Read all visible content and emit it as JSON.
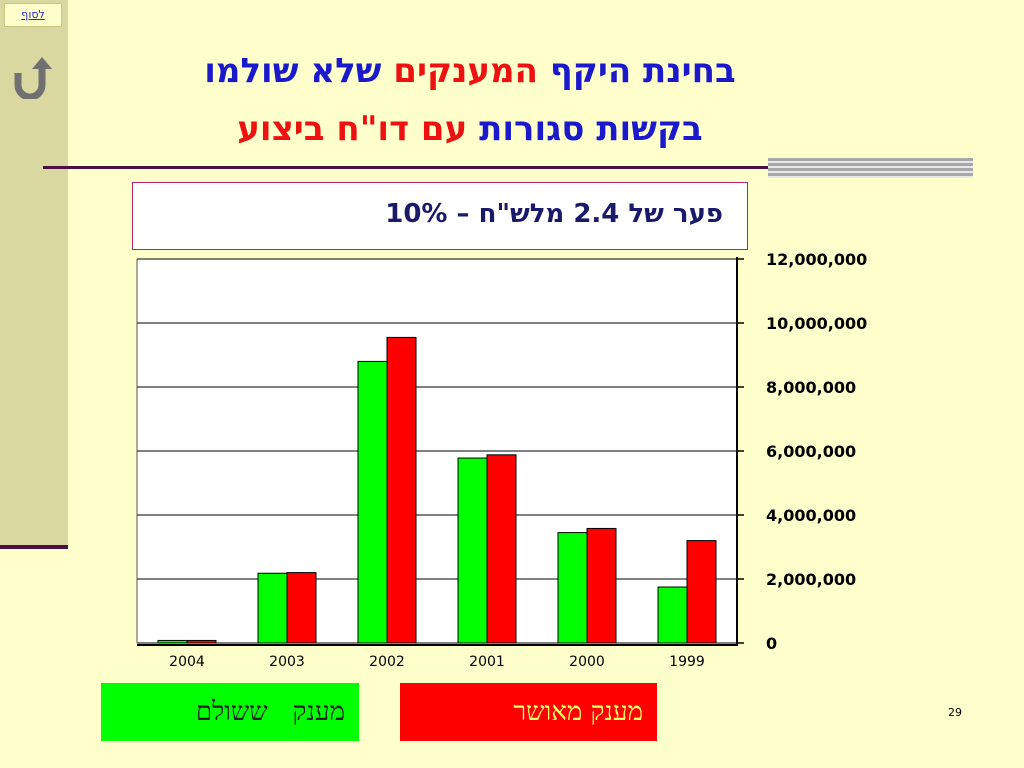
{
  "nav": {
    "to_end_label": "לסוף"
  },
  "title": {
    "line1_part1": "בחינת היקף ",
    "line1_part2": "המענקים",
    "line1_part3": " שלא שולמו",
    "line2_part1": "בקשות סגורות",
    "line2_part2": " עם  ",
    "line2_part3": "דו\"ח ביצוע"
  },
  "gap_note": "פער של 2.4  מלש\"ח – 10%",
  "legend": {
    "paid": "מענק   ששולם",
    "approved": "מענק מאושר"
  },
  "colors": {
    "paid": "#00ff00",
    "approved": "#ff0000"
  },
  "page_number": "29",
  "chart_data": {
    "type": "bar",
    "categories": [
      "2004",
      "2003",
      "2002",
      "2001",
      "2000",
      "1999"
    ],
    "series": [
      {
        "name": "מענק   ששולם",
        "values": [
          80000,
          2180000,
          8800000,
          5780000,
          3450000,
          1750000
        ]
      },
      {
        "name": "מענק מאושר",
        "values": [
          80000,
          2200000,
          9550000,
          5880000,
          3580000,
          3200000
        ]
      }
    ],
    "yticks": [
      "0",
      "2,000,000",
      "4,000,000",
      "6,000,000",
      "8,000,000",
      "10,000,000",
      "12,000,000"
    ],
    "ylim": [
      0,
      12000000
    ],
    "y_axis_side": "right",
    "grid": true
  }
}
